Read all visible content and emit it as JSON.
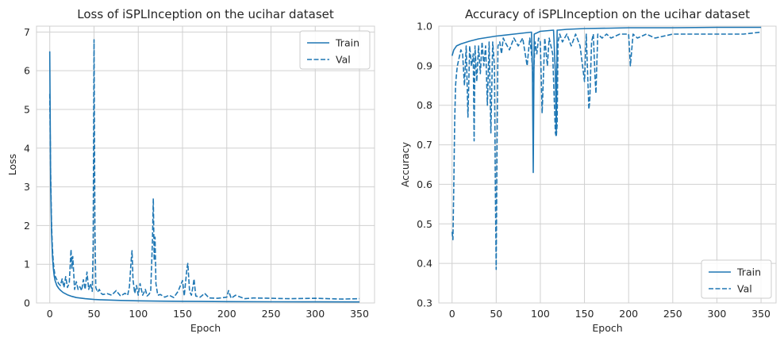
{
  "chart_data": [
    {
      "type": "line",
      "title": "Loss of iSPLInception on the ucihar dataset",
      "xlabel": "Epoch",
      "ylabel": "Loss",
      "xlim": [
        -15,
        367
      ],
      "ylim": [
        0,
        7.15
      ],
      "xticks": [
        0,
        50,
        100,
        150,
        200,
        250,
        300,
        350
      ],
      "yticks": [
        0,
        1,
        2,
        3,
        4,
        5,
        6,
        7
      ],
      "grid": true,
      "legend_placement": "top-right",
      "color": "#1f77b4",
      "series": [
        {
          "name": "Train",
          "style": "solid",
          "x": [
            0,
            1,
            2,
            3,
            4,
            5,
            6,
            8,
            10,
            12,
            15,
            20,
            25,
            30,
            40,
            50,
            60,
            80,
            100,
            125,
            150,
            200,
            250,
            300,
            350
          ],
          "y": [
            6.5,
            3.1,
            1.8,
            1.2,
            0.9,
            0.7,
            0.58,
            0.45,
            0.38,
            0.33,
            0.27,
            0.21,
            0.17,
            0.14,
            0.11,
            0.09,
            0.08,
            0.065,
            0.055,
            0.048,
            0.042,
            0.035,
            0.03,
            0.028,
            0.026
          ]
        },
        {
          "name": "Val",
          "style": "dashed",
          "x": [
            0,
            1,
            2,
            3,
            4,
            5,
            6,
            8,
            10,
            12,
            14,
            16,
            18,
            20,
            22,
            24,
            25,
            26,
            28,
            30,
            32,
            34,
            36,
            38,
            40,
            42,
            44,
            46,
            48,
            49,
            50,
            51,
            52,
            54,
            56,
            58,
            60,
            65,
            70,
            75,
            80,
            85,
            88,
            90,
            92,
            93,
            94,
            96,
            98,
            100,
            102,
            105,
            108,
            110,
            112,
            114,
            116,
            117,
            118,
            119,
            120,
            122,
            125,
            130,
            135,
            140,
            145,
            150,
            152,
            155,
            156,
            158,
            160,
            162,
            163,
            165,
            170,
            175,
            180,
            190,
            200,
            202,
            205,
            210,
            220,
            230,
            250,
            270,
            300,
            330,
            350
          ],
          "y": [
            5.4,
            3.4,
            2.0,
            1.4,
            1.05,
            0.85,
            0.7,
            0.6,
            0.5,
            0.45,
            0.62,
            0.4,
            0.68,
            0.4,
            0.52,
            1.38,
            0.9,
            1.2,
            0.35,
            0.55,
            0.35,
            0.42,
            0.32,
            0.6,
            0.35,
            0.8,
            0.35,
            0.5,
            0.3,
            1.5,
            6.8,
            2.0,
            0.4,
            0.28,
            0.35,
            0.25,
            0.22,
            0.24,
            0.2,
            0.32,
            0.18,
            0.25,
            0.2,
            0.42,
            1.1,
            1.35,
            0.6,
            0.25,
            0.45,
            0.2,
            0.5,
            0.2,
            0.35,
            0.18,
            0.22,
            0.3,
            1.6,
            2.7,
            1.1,
            1.7,
            0.5,
            0.2,
            0.22,
            0.15,
            0.2,
            0.14,
            0.3,
            0.58,
            0.18,
            0.9,
            1.02,
            0.3,
            0.2,
            0.45,
            0.62,
            0.18,
            0.15,
            0.25,
            0.13,
            0.12,
            0.15,
            0.32,
            0.12,
            0.2,
            0.11,
            0.13,
            0.12,
            0.11,
            0.12,
            0.1,
            0.11
          ]
        }
      ]
    },
    {
      "type": "line",
      "title": "Accuracy of iSPLInception on the ucihar dataset",
      "xlabel": "Epoch",
      "ylabel": "Accuracy",
      "xlim": [
        -15,
        367
      ],
      "ylim": [
        0.3,
        1.0
      ],
      "xticks": [
        0,
        50,
        100,
        150,
        200,
        250,
        300,
        350
      ],
      "yticks": [
        0.3,
        0.4,
        0.5,
        0.6,
        0.7,
        0.8,
        0.9,
        1.0
      ],
      "grid": true,
      "legend_placement": "bottom-right",
      "color": "#1f77b4",
      "series": [
        {
          "name": "Train",
          "style": "solid",
          "x": [
            0,
            2,
            5,
            10,
            20,
            30,
            50,
            70,
            90,
            91,
            92,
            93,
            100,
            115,
            117,
            118,
            119,
            120,
            130,
            150,
            180,
            200,
            250,
            300,
            350
          ],
          "y": [
            0.925,
            0.94,
            0.95,
            0.955,
            0.962,
            0.968,
            0.975,
            0.98,
            0.985,
            0.9,
            0.63,
            0.98,
            0.987,
            0.99,
            0.88,
            0.73,
            0.99,
            0.99,
            0.992,
            0.994,
            0.995,
            0.996,
            0.996,
            0.997,
            0.997
          ]
        },
        {
          "name": "Val",
          "style": "dashed",
          "x": [
            0,
            1,
            2,
            3,
            4,
            5,
            6,
            8,
            10,
            12,
            14,
            16,
            18,
            20,
            22,
            24,
            25,
            26,
            28,
            30,
            32,
            34,
            36,
            38,
            40,
            42,
            44,
            46,
            48,
            49,
            50,
            51,
            52,
            54,
            56,
            58,
            60,
            65,
            70,
            75,
            80,
            85,
            88,
            90,
            92,
            94,
            96,
            98,
            100,
            102,
            105,
            108,
            110,
            112,
            114,
            116,
            117,
            118,
            119,
            120,
            122,
            125,
            130,
            135,
            140,
            145,
            150,
            152,
            155,
            156,
            158,
            160,
            162,
            163,
            165,
            170,
            175,
            180,
            190,
            200,
            202,
            205,
            210,
            220,
            230,
            250,
            270,
            300,
            330,
            350
          ],
          "y": [
            0.48,
            0.46,
            0.6,
            0.76,
            0.85,
            0.88,
            0.9,
            0.92,
            0.94,
            0.93,
            0.85,
            0.95,
            0.77,
            0.95,
            0.9,
            0.93,
            0.71,
            0.95,
            0.86,
            0.95,
            0.88,
            0.96,
            0.9,
            0.95,
            0.8,
            0.96,
            0.73,
            0.96,
            0.9,
            0.6,
            0.385,
            0.7,
            0.95,
            0.96,
            0.93,
            0.97,
            0.96,
            0.94,
            0.97,
            0.95,
            0.97,
            0.9,
            0.97,
            0.93,
            0.86,
            0.96,
            0.93,
            0.97,
            0.96,
            0.78,
            0.97,
            0.9,
            0.97,
            0.95,
            0.93,
            0.8,
            0.73,
            0.72,
            0.75,
            0.96,
            0.98,
            0.96,
            0.98,
            0.95,
            0.98,
            0.95,
            0.86,
            0.98,
            0.79,
            0.81,
            0.96,
            0.98,
            0.87,
            0.83,
            0.98,
            0.97,
            0.98,
            0.97,
            0.98,
            0.98,
            0.9,
            0.98,
            0.97,
            0.98,
            0.97,
            0.98,
            0.98,
            0.98,
            0.98,
            0.985
          ]
        }
      ]
    }
  ]
}
